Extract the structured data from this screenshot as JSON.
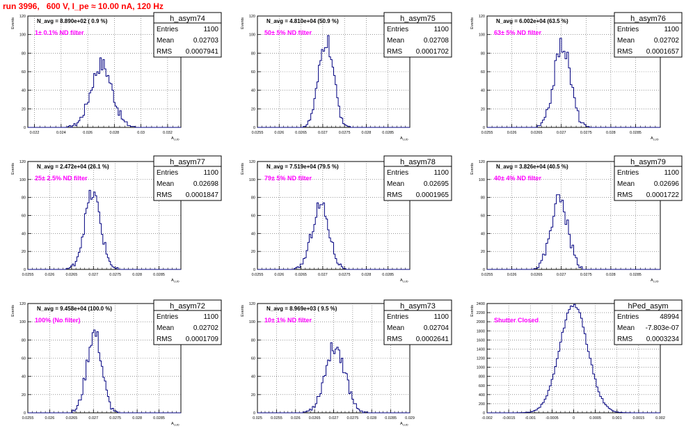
{
  "figure": {
    "title": "run 3996,   600 V, I_pe ≈ 10.00 nA, 120 Hz"
  },
  "chart_data": [
    {
      "type": "bar",
      "name": "h_asym74",
      "stats": {
        "entries_label": "Entries",
        "entries": "1100",
        "mean_label": "Mean",
        "mean": "0.02703",
        "rms_label": "RMS",
        "rms": "0.0007941"
      },
      "navg": "N_avg = 8.890e+02 ( 0.9 %)",
      "filter": "1± 0.1% ND filter",
      "ylabel": "Events",
      "xlabel": "A_LUD",
      "xlim": [
        0.0215,
        0.033
      ],
      "ylim": [
        0,
        120
      ],
      "xticks": [
        0.022,
        0.024,
        0.026,
        0.028,
        0.03,
        0.032
      ],
      "xtick_labels": [
        "0.022",
        "0.024",
        "0.026",
        "0.028",
        "0.03",
        "0.032"
      ],
      "yticks": [
        0,
        20,
        40,
        60,
        80,
        100,
        120
      ],
      "mean": 0.02703,
      "sigma": 0.0007941,
      "peak": 68
    },
    {
      "type": "bar",
      "name": "h_asym75",
      "stats": {
        "entries_label": "Entries",
        "entries": "1100",
        "mean_label": "Mean",
        "mean": "0.02708",
        "rms_label": "RMS",
        "rms": "0.0001702"
      },
      "navg": "N_avg = 4.810e+04 (50.9 %)",
      "filter": "50± 5% ND filter",
      "ylabel": "Events",
      "xlabel": "A_LUD",
      "xlim": [
        0.0255,
        0.029
      ],
      "ylim": [
        0,
        120
      ],
      "xticks": [
        0.0255,
        0.026,
        0.0265,
        0.027,
        0.0275,
        0.028,
        0.0285
      ],
      "xtick_labels": [
        "0.0255",
        "0.026",
        "0.0265",
        "0.027",
        "0.0275",
        "0.028",
        "0.0285"
      ],
      "yticks": [
        0,
        20,
        40,
        60,
        80,
        100,
        120
      ],
      "mean": 0.02708,
      "sigma": 0.0001702,
      "peak": 94
    },
    {
      "type": "bar",
      "name": "h_asym76",
      "stats": {
        "entries_label": "Entries",
        "entries": "1100",
        "mean_label": "Mean",
        "mean": "0.02702",
        "rms_label": "RMS",
        "rms": "0.0001657"
      },
      "navg": "N_avg = 6.002e+04 (63.5 %)",
      "filter": "63± 5% ND filter",
      "ylabel": "Events",
      "xlabel": "A_LUD",
      "xlim": [
        0.0255,
        0.029
      ],
      "ylim": [
        0,
        120
      ],
      "xticks": [
        0.0255,
        0.026,
        0.0265,
        0.027,
        0.0275,
        0.028,
        0.0285
      ],
      "xtick_labels": [
        "0.0255",
        "0.026",
        "0.0265",
        "0.027",
        "0.0275",
        "0.028",
        "0.0285"
      ],
      "yticks": [
        0,
        20,
        40,
        60,
        80,
        100,
        120
      ],
      "mean": 0.02702,
      "sigma": 0.0001657,
      "peak": 90
    },
    {
      "type": "bar",
      "name": "h_asym77",
      "stats": {
        "entries_label": "Entries",
        "entries": "1100",
        "mean_label": "Mean",
        "mean": "0.02698",
        "rms_label": "RMS",
        "rms": "0.0001847"
      },
      "navg": "N_avg = 2.472e+04 (26.1 %)",
      "filter": "25± 2.5% ND filter",
      "ylabel": "Events",
      "xlabel": "A_LUD",
      "xlim": [
        0.0255,
        0.029
      ],
      "ylim": [
        0,
        120
      ],
      "xticks": [
        0.0255,
        0.026,
        0.0265,
        0.027,
        0.0275,
        0.028,
        0.0285
      ],
      "xtick_labels": [
        "0.0255",
        "0.026",
        "0.0265",
        "0.027",
        "0.0275",
        "0.028",
        "0.0285"
      ],
      "yticks": [
        0,
        20,
        40,
        60,
        80,
        100,
        120
      ],
      "mean": 0.02698,
      "sigma": 0.0001847,
      "peak": 84
    },
    {
      "type": "bar",
      "name": "h_asym78",
      "stats": {
        "entries_label": "Entries",
        "entries": "1100",
        "mean_label": "Mean",
        "mean": "0.02695",
        "rms_label": "RMS",
        "rms": "0.0001965"
      },
      "navg": "N_avg = 7.519e+04 (79.5 %)",
      "filter": "79± 5% ND filter",
      "ylabel": "Events",
      "xlabel": "A_LUD",
      "xlim": [
        0.0255,
        0.029
      ],
      "ylim": [
        0,
        120
      ],
      "xticks": [
        0.0255,
        0.026,
        0.0265,
        0.027,
        0.0275,
        0.028,
        0.0285
      ],
      "xtick_labels": [
        "0.0255",
        "0.026",
        "0.0265",
        "0.027",
        "0.0275",
        "0.028",
        "0.0285"
      ],
      "yticks": [
        0,
        20,
        40,
        60,
        80,
        100,
        120
      ],
      "mean": 0.02695,
      "sigma": 0.0001965,
      "peak": 72
    },
    {
      "type": "bar",
      "name": "h_asym79",
      "stats": {
        "entries_label": "Entries",
        "entries": "1100",
        "mean_label": "Mean",
        "mean": "0.02696",
        "rms_label": "RMS",
        "rms": "0.0001722"
      },
      "navg": "N_avg = 3.826e+04 (40.5 %)",
      "filter": "40± 4% ND filter",
      "ylabel": "Events",
      "xlabel": "A_LUD",
      "xlim": [
        0.0255,
        0.029
      ],
      "ylim": [
        0,
        120
      ],
      "xticks": [
        0.0255,
        0.026,
        0.0265,
        0.027,
        0.0275,
        0.028,
        0.0285
      ],
      "xtick_labels": [
        "0.0255",
        "0.026",
        "0.0265",
        "0.027",
        "0.0275",
        "0.028",
        "0.0285"
      ],
      "yticks": [
        0,
        20,
        40,
        60,
        80,
        100,
        120
      ],
      "mean": 0.02696,
      "sigma": 0.0001722,
      "peak": 78
    },
    {
      "type": "bar",
      "name": "h_asym72",
      "stats": {
        "entries_label": "Entries",
        "entries": "1100",
        "mean_label": "Mean",
        "mean": "0.02702",
        "rms_label": "RMS",
        "rms": "0.0001709"
      },
      "navg": "N_avg = 9.458e+04 (100.0 %)",
      "filter": "100% (No filter)",
      "ylabel": "Events",
      "xlabel": "A_LUD",
      "xlim": [
        0.0255,
        0.029
      ],
      "ylim": [
        0,
        120
      ],
      "xticks": [
        0.0255,
        0.026,
        0.0265,
        0.027,
        0.0275,
        0.028,
        0.0285
      ],
      "xtick_labels": [
        "0.0255",
        "0.026",
        "0.0265",
        "0.027",
        "0.0275",
        "0.028",
        "0.0285"
      ],
      "yticks": [
        0,
        20,
        40,
        60,
        80,
        100,
        120
      ],
      "mean": 0.02702,
      "sigma": 0.0001709,
      "peak": 88
    },
    {
      "type": "bar",
      "name": "h_asym73",
      "stats": {
        "entries_label": "Entries",
        "entries": "1100",
        "mean_label": "Mean",
        "mean": "0.02704",
        "rms_label": "RMS",
        "rms": "0.0002641"
      },
      "navg": "N_avg = 8.969e+03 ( 9.5 %)",
      "filter": "10± 1% ND filter",
      "ylabel": "Events",
      "xlabel": "A_LUD",
      "xlim": [
        0.025,
        0.029
      ],
      "ylim": [
        0,
        120
      ],
      "xticks": [
        0.025,
        0.0255,
        0.026,
        0.0265,
        0.027,
        0.0275,
        0.028,
        0.0285,
        0.029
      ],
      "xtick_labels": [
        "0.025",
        "0.0255",
        "0.026",
        "0.0265",
        "0.027",
        "0.0275",
        "0.028",
        "0.0285",
        "0.029"
      ],
      "yticks": [
        0,
        20,
        40,
        60,
        80,
        100,
        120
      ],
      "mean": 0.02704,
      "sigma": 0.0002641,
      "peak": 73
    },
    {
      "type": "bar",
      "name": "hPed_asym",
      "stats": {
        "entries_label": "Entries",
        "entries": "48994",
        "mean_label": "Mean",
        "mean": "-7.803e-07",
        "rms_label": "RMS",
        "rms": "0.0003234"
      },
      "navg": "",
      "filter": "Shutter Closed",
      "ylabel": "Events",
      "xlabel": "",
      "xlim": [
        -0.002,
        0.002
      ],
      "ylim": [
        0,
        2400
      ],
      "xticks": [
        -0.002,
        -0.0015,
        -0.001,
        -0.0005,
        0,
        0.0005,
        0.001,
        0.0015,
        0.002
      ],
      "xtick_labels": [
        "-0.002",
        "-0.0015",
        "-0.001",
        "-0.0005",
        "0",
        "0.0005",
        "0.001",
        "0.0015",
        "0.002"
      ],
      "yticks": [
        0,
        200,
        400,
        600,
        800,
        1000,
        1200,
        1400,
        1600,
        1800,
        2000,
        2200,
        2400
      ],
      "mean": -7.803e-07,
      "sigma": 0.0003234,
      "peak": 2380
    }
  ]
}
